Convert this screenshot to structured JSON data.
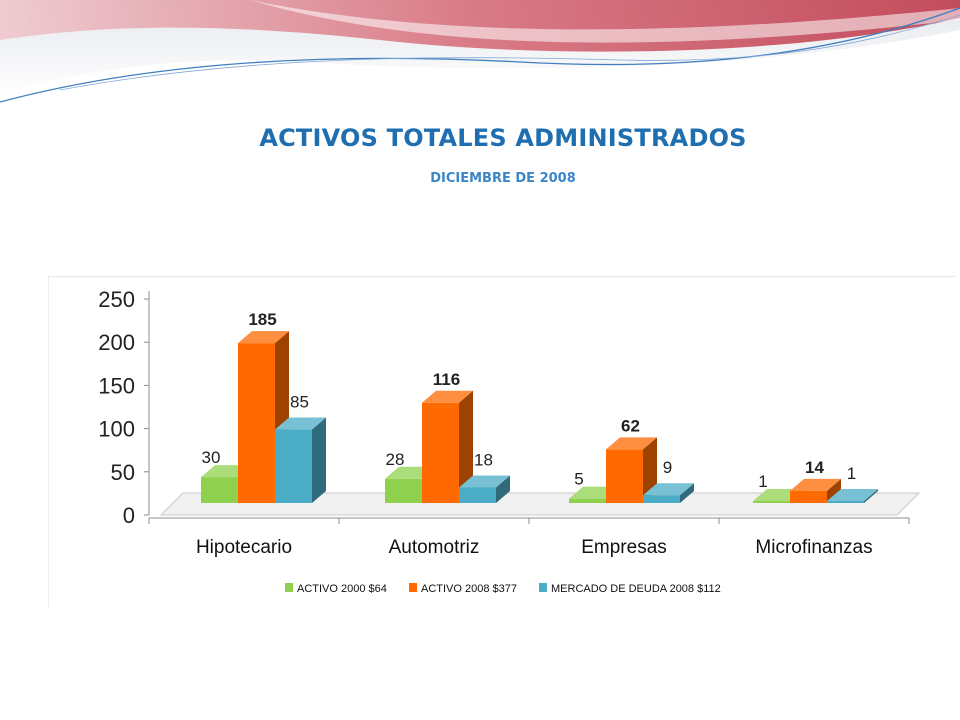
{
  "slide": {
    "title": "ACTIVOS TOTALES ADMINISTRADOS",
    "subtitle": "DICIEMBRE DE 2008"
  },
  "colors": {
    "title": "#1f6fb0",
    "subtitle": "#3a86c8",
    "banner_red": "#c9505f",
    "banner_line": "#3f7fc0"
  },
  "chart_data": {
    "type": "bar",
    "categories": [
      "Hipotecario",
      "Automotriz",
      "Empresas",
      "Microfinanzas"
    ],
    "series": [
      {
        "name": "ACTIVO 2000 $64",
        "values": [
          30,
          28,
          5,
          1
        ],
        "color": "#8fd14f",
        "label_bold": false
      },
      {
        "name": "ACTIVO 2008 $377",
        "values": [
          185,
          116,
          62,
          14
        ],
        "color": "#ff6a00",
        "label_bold": true
      },
      {
        "name": "MERCADO DE DEUDA 2008  $112",
        "values": [
          85,
          18,
          9,
          1
        ],
        "color": "#4bacc6",
        "label_bold": false
      }
    ],
    "ylim": [
      0,
      250
    ],
    "yticks": [
      "0",
      "50",
      "100",
      "150",
      "200",
      "250"
    ],
    "data_labels": [
      [
        "30",
        "28",
        "5",
        "1"
      ],
      [
        "185",
        "116",
        "62",
        "14"
      ],
      [
        "85",
        "18",
        "9",
        "1"
      ]
    ],
    "legend_position": "bottom",
    "three_d": true,
    "grid": false
  }
}
